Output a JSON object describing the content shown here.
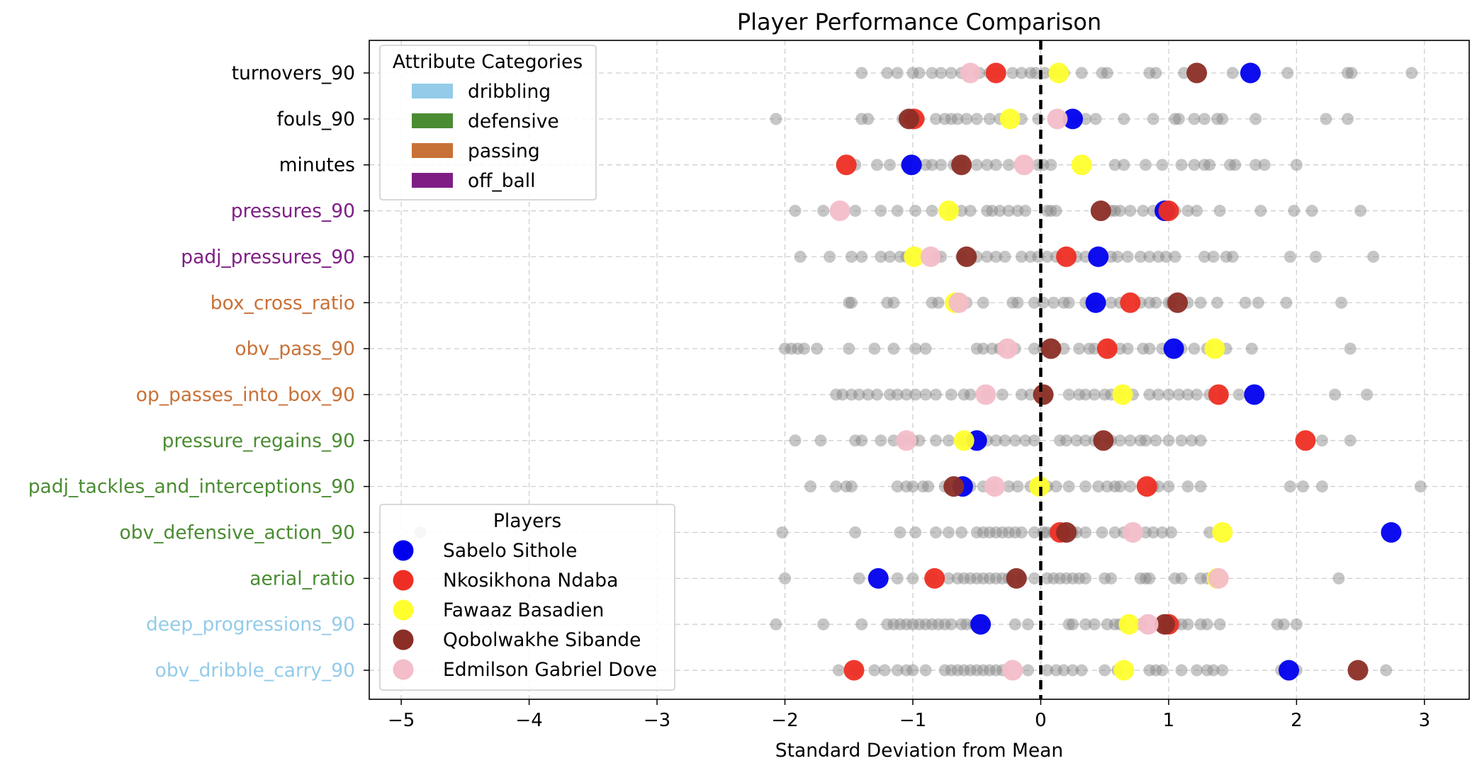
{
  "chart_data": {
    "type": "scatter",
    "title": "Player Performance Comparison",
    "xlabel": "Standard Deviation from Mean",
    "ylabel": "",
    "xlim": [
      -5.25,
      3.35
    ],
    "xticks": [
      -5,
      -4,
      -3,
      -2,
      -1,
      0,
      1,
      2,
      3
    ],
    "xtick_labels": [
      "−5",
      "−4",
      "−3",
      "−2",
      "−1",
      "0",
      "1",
      "2",
      "3"
    ],
    "grid": true,
    "mean_line": 0,
    "categories": [
      {
        "label": "turnovers_90",
        "group": "none"
      },
      {
        "label": "fouls_90",
        "group": "none"
      },
      {
        "label": "minutes",
        "group": "none"
      },
      {
        "label": "pressures_90",
        "group": "off_ball"
      },
      {
        "label": "padj_pressures_90",
        "group": "off_ball"
      },
      {
        "label": "box_cross_ratio",
        "group": "passing"
      },
      {
        "label": "obv_pass_90",
        "group": "passing"
      },
      {
        "label": "op_passes_into_box_90",
        "group": "passing"
      },
      {
        "label": "pressure_regains_90",
        "group": "defensive"
      },
      {
        "label": "padj_tackles_and_interceptions_90",
        "group": "defensive"
      },
      {
        "label": "obv_defensive_action_90",
        "group": "defensive"
      },
      {
        "label": "aerial_ratio",
        "group": "defensive"
      },
      {
        "label": "deep_progressions_90",
        "group": "dribbling"
      },
      {
        "label": "obv_dribble_carry_90",
        "group": "dribbling"
      }
    ],
    "label_colors": {
      "none": "#000000",
      "dribbling": "#93cbe9",
      "defensive": "#4a8c32",
      "passing": "#c87137",
      "off_ball": "#7e1e85"
    },
    "category_legend": {
      "title": "Attribute Categories",
      "location": "upper-left",
      "items": [
        {
          "label": "dribbling",
          "color": "#93cbe9"
        },
        {
          "label": "defensive",
          "color": "#4a8c32"
        },
        {
          "label": "passing",
          "color": "#c87137"
        },
        {
          "label": "off_ball",
          "color": "#7e1e85"
        }
      ]
    },
    "players_legend": {
      "title": "Players",
      "location": "lower-left"
    },
    "background_color": "#808080",
    "background": [
      [
        -1.4,
        -1.2,
        -1.12,
        -1.0,
        -0.95,
        -0.85,
        -0.78,
        -0.7,
        -0.62,
        -0.48,
        -0.4,
        -0.32,
        -0.22,
        -0.15,
        -0.08,
        -0.04,
        0.03,
        0.1,
        0.18,
        0.32,
        0.48,
        0.52,
        0.85,
        0.9,
        1.12,
        1.5,
        1.93,
        2.4,
        2.43,
        2.9
      ],
      [
        -2.07,
        -1.4,
        -1.35,
        -1.08,
        -1.02,
        -0.95,
        -0.82,
        -0.75,
        -0.7,
        -0.65,
        -0.58,
        -0.5,
        -0.4,
        -0.32,
        -0.15,
        -0.02,
        0.28,
        0.35,
        0.43,
        0.65,
        0.88,
        1.05,
        1.08,
        1.2,
        1.28,
        1.38,
        1.42,
        1.68,
        2.23,
        2.4
      ],
      [
        -1.45,
        -1.28,
        -1.18,
        -1.05,
        -0.9,
        -0.85,
        -0.78,
        -0.68,
        -0.62,
        -0.5,
        -0.42,
        -0.35,
        -0.25,
        -0.02,
        0.02,
        0.08,
        0.58,
        0.65,
        0.82,
        0.95,
        1.1,
        1.2,
        1.28,
        1.32,
        1.48,
        1.52,
        1.68,
        1.75,
        2.0
      ],
      [
        -1.92,
        -1.7,
        -1.45,
        -1.25,
        -1.12,
        -0.98,
        -0.85,
        -0.7,
        -0.62,
        -0.55,
        -0.42,
        -0.38,
        -0.32,
        -0.25,
        -0.18,
        -0.12,
        0.05,
        0.08,
        0.12,
        0.55,
        0.58,
        0.62,
        0.7,
        0.8,
        0.88,
        0.95,
        1.05,
        1.15,
        1.22,
        1.4,
        1.72,
        1.98,
        2.12,
        2.5
      ],
      [
        -1.88,
        -1.65,
        -1.48,
        -1.4,
        -1.25,
        -1.18,
        -1.1,
        -1.05,
        -0.82,
        -0.78,
        -0.62,
        -0.5,
        -0.42,
        -0.35,
        -0.28,
        -0.15,
        -0.08,
        -0.02,
        0.05,
        0.12,
        0.28,
        0.35,
        0.55,
        0.6,
        0.68,
        0.78,
        0.85,
        0.92,
        0.98,
        1.05,
        1.28,
        1.35,
        1.45,
        1.5,
        1.95,
        2.15,
        2.6
      ],
      [
        -1.48,
        -1.5,
        -1.2,
        -1.15,
        -0.85,
        -0.8,
        -0.58,
        -0.45,
        -0.22,
        -0.18,
        -0.05,
        0.02,
        0.1,
        0.18,
        0.22,
        0.35,
        0.42,
        0.55,
        0.62,
        0.78,
        0.85,
        0.9,
        1.0,
        1.02,
        1.15,
        1.25,
        1.38,
        1.6,
        1.7,
        1.92,
        2.35
      ],
      [
        -2.0,
        -1.95,
        -1.9,
        -1.85,
        -1.75,
        -1.5,
        -1.3,
        -1.15,
        -0.98,
        -0.9,
        -0.5,
        -0.45,
        -0.38,
        -0.32,
        -0.2,
        -0.05,
        0.02,
        0.18,
        0.3,
        0.38,
        0.42,
        0.55,
        0.62,
        0.68,
        0.8,
        0.85,
        0.95,
        1.1,
        1.2,
        1.3,
        1.45,
        1.65,
        2.42
      ],
      [
        -1.6,
        -1.55,
        -1.48,
        -1.42,
        -1.35,
        -1.28,
        -1.18,
        -1.12,
        -1.05,
        -0.98,
        -0.9,
        -0.82,
        -0.7,
        -0.6,
        -0.55,
        -0.42,
        -0.3,
        -0.15,
        -0.08,
        0.05,
        0.22,
        0.3,
        0.35,
        0.42,
        0.5,
        0.55,
        0.62,
        0.72,
        0.85,
        0.92,
        1.0,
        1.08,
        1.15,
        1.22,
        1.32,
        1.42,
        1.55,
        2.3,
        2.55
      ],
      [
        -1.92,
        -1.72,
        -1.45,
        -1.4,
        -1.25,
        -1.15,
        -1.08,
        -1.0,
        -0.95,
        -0.82,
        -0.72,
        -0.6,
        -0.48,
        -0.42,
        -0.35,
        -0.28,
        -0.2,
        -0.12,
        -0.05,
        0.15,
        0.2,
        0.28,
        0.35,
        0.42,
        0.55,
        0.62,
        0.7,
        0.78,
        0.82,
        0.9,
        1.0,
        1.1,
        1.18,
        1.25,
        2.2,
        2.42
      ],
      [
        -1.8,
        -1.6,
        -1.52,
        -1.48,
        -1.12,
        -1.05,
        -1.0,
        -0.92,
        -0.88,
        -0.75,
        -0.55,
        -0.45,
        -0.38,
        -0.25,
        -0.18,
        -0.08,
        0.05,
        0.12,
        0.22,
        0.35,
        0.45,
        0.52,
        0.58,
        0.62,
        0.7,
        0.88,
        0.92,
        1.0,
        1.15,
        1.25,
        1.95,
        2.05,
        2.2,
        2.97
      ],
      [
        -4.85,
        -2.02,
        -1.45,
        -1.1,
        -0.98,
        -0.82,
        -0.72,
        -0.62,
        -0.5,
        -0.45,
        -0.4,
        -0.35,
        -0.3,
        -0.25,
        -0.2,
        -0.15,
        -0.05,
        0.02,
        0.05,
        0.1,
        0.25,
        0.28,
        0.35,
        0.48,
        0.58,
        0.65,
        0.82,
        0.88,
        0.95,
        1.02,
        1.32
      ],
      [
        -2.0,
        -1.42,
        -1.12,
        -1.0,
        -0.85,
        -0.72,
        -0.65,
        -0.6,
        -0.55,
        -0.5,
        -0.45,
        -0.4,
        -0.35,
        -0.3,
        -0.25,
        -0.15,
        -0.05,
        0.05,
        0.1,
        0.15,
        0.2,
        0.25,
        0.3,
        0.35,
        0.5,
        0.55,
        0.78,
        0.82,
        0.85,
        1.05,
        1.1,
        1.25,
        1.3,
        2.33
      ],
      [
        -2.07,
        -1.7,
        -1.4,
        -1.2,
        -1.15,
        -1.1,
        -1.05,
        -1.0,
        -0.95,
        -0.9,
        -0.85,
        -0.8,
        -0.75,
        -0.7,
        -0.62,
        -0.58,
        -0.52,
        -0.45,
        -0.2,
        -0.1,
        0.22,
        0.25,
        0.35,
        0.42,
        0.52,
        0.58,
        0.62,
        0.78,
        1.05,
        1.1,
        1.15,
        1.25,
        1.3,
        1.4,
        1.85,
        1.9,
        2.0
      ],
      [
        -1.58,
        -1.45,
        -1.3,
        -1.22,
        -1.12,
        -1.05,
        -1.0,
        -0.9,
        -0.75,
        -0.7,
        -0.65,
        -0.6,
        -0.55,
        -0.5,
        -0.45,
        -0.4,
        -0.35,
        -0.3,
        -0.1,
        0.05,
        0.12,
        0.18,
        0.25,
        0.32,
        0.5,
        0.6,
        0.85,
        0.9,
        0.95,
        1.1,
        1.22,
        1.3,
        1.35,
        1.42,
        1.88,
        2.0,
        2.7
      ]
    ],
    "series": [
      {
        "name": "Sabelo Sithole",
        "color": "#0000ee",
        "values": [
          1.64,
          0.25,
          -1.01,
          0.97,
          0.45,
          0.43,
          1.04,
          1.67,
          -0.5,
          -0.61,
          2.74,
          -1.27,
          -0.47,
          1.94
        ]
      },
      {
        "name": "Nkosikhona Ndaba",
        "color": "#ee2e23",
        "values": [
          -0.35,
          -0.99,
          -1.52,
          1.0,
          0.2,
          0.7,
          0.52,
          1.39,
          2.07,
          0.83,
          0.15,
          -0.83,
          1.0,
          -1.46
        ]
      },
      {
        "name": "Fawaaz Basadien",
        "color": "#ffff2e",
        "values": [
          0.14,
          -0.24,
          0.32,
          -0.72,
          -0.99,
          -0.67,
          1.36,
          0.64,
          -0.6,
          -0.01,
          1.42,
          1.38,
          0.69,
          0.65
        ]
      },
      {
        "name": "Qobolwakhe Sibande",
        "color": "#8b2e26",
        "values": [
          1.22,
          -1.03,
          -0.62,
          0.47,
          -0.58,
          1.07,
          0.08,
          0.02,
          0.49,
          -0.68,
          0.2,
          -0.19,
          0.97,
          2.48
        ]
      },
      {
        "name": "Edmilson Gabriel Dove",
        "color": "#f3bdc9",
        "values": [
          -0.55,
          0.13,
          -0.13,
          -1.57,
          -0.86,
          -0.64,
          -0.26,
          -0.43,
          -1.05,
          -0.36,
          0.72,
          1.39,
          0.84,
          -0.22
        ]
      }
    ]
  }
}
